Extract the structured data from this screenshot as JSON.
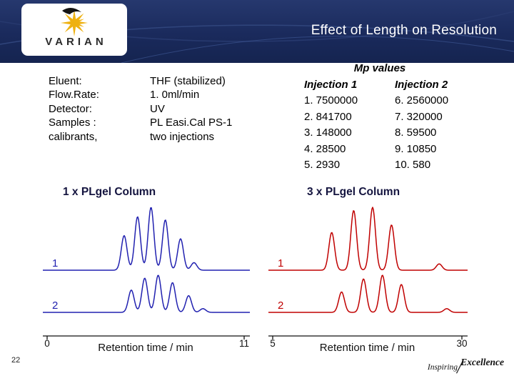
{
  "slide": {
    "title": "Effect of Length on Resolution",
    "page_number": "22"
  },
  "logo": {
    "text": "VARIAN"
  },
  "conditions": {
    "rows": [
      {
        "label": "Eluent:",
        "value": "THF (stabilized)"
      },
      {
        "label": "Flow.Rate:",
        "value": "1. 0ml/min"
      },
      {
        "label": "Detector:",
        "value": "UV"
      },
      {
        "label": "Samples :",
        "value": "PL Easi.Cal PS-1"
      },
      {
        "label": "calibrants,",
        "value": "two injections"
      }
    ]
  },
  "mp_values": {
    "title": "Mp values",
    "headers": [
      "Injection 1",
      "Injection 2"
    ],
    "rows": [
      [
        "1. 7500000",
        "6. 2560000"
      ],
      [
        "2. 841700",
        "7. 320000"
      ],
      [
        "3. 148000",
        "8. 59500"
      ],
      [
        "4. 28500",
        "9. 10850"
      ],
      [
        "5. 2930",
        "10. 580"
      ]
    ]
  },
  "brand": {
    "light": "Inspiring",
    "bold": "Excellence"
  },
  "colors": {
    "header_band": "#1a2a5c",
    "logo_star": "#eeb111",
    "trace_blue": "#2121b0",
    "trace_red": "#c00000"
  },
  "chart_data": [
    {
      "type": "line",
      "title": "1 x PLgel Column",
      "xlabel": "Retention time / min",
      "xlim": [
        0,
        11
      ],
      "x_ticks": [
        "0",
        "11"
      ],
      "grid": false,
      "color": "#2121b0",
      "axis_color": "#111111",
      "traces": [
        {
          "label": "1",
          "sigma": 0.16,
          "peaks": [
            {
              "t": 4.3,
              "h": 0.55
            },
            {
              "t": 5.05,
              "h": 0.85
            },
            {
              "t": 5.8,
              "h": 1.0
            },
            {
              "t": 6.6,
              "h": 0.8
            },
            {
              "t": 7.45,
              "h": 0.5
            },
            {
              "t": 8.2,
              "h": 0.12
            }
          ]
        },
        {
          "label": "2",
          "sigma": 0.16,
          "peaks": [
            {
              "t": 4.7,
              "h": 0.6
            },
            {
              "t": 5.45,
              "h": 0.92
            },
            {
              "t": 6.2,
              "h": 1.0
            },
            {
              "t": 7.0,
              "h": 0.8
            },
            {
              "t": 7.9,
              "h": 0.45
            },
            {
              "t": 8.7,
              "h": 0.1
            }
          ]
        }
      ]
    },
    {
      "type": "line",
      "title": "3 x PLgel Column",
      "xlabel": "Retention time / min",
      "xlim": [
        5,
        30
      ],
      "x_ticks": [
        "5",
        "30"
      ],
      "grid": false,
      "color": "#c00000",
      "axis_color": "#111111",
      "traces": [
        {
          "label": "1",
          "sigma": 0.38,
          "peaks": [
            {
              "t": 12.8,
              "h": 0.6
            },
            {
              "t": 15.7,
              "h": 0.95
            },
            {
              "t": 18.2,
              "h": 1.0
            },
            {
              "t": 20.7,
              "h": 0.72
            },
            {
              "t": 27.0,
              "h": 0.1
            }
          ]
        },
        {
          "label": "2",
          "sigma": 0.38,
          "peaks": [
            {
              "t": 14.1,
              "h": 0.55
            },
            {
              "t": 17.0,
              "h": 0.9
            },
            {
              "t": 19.5,
              "h": 1.0
            },
            {
              "t": 22.0,
              "h": 0.75
            },
            {
              "t": 28.0,
              "h": 0.1
            }
          ]
        }
      ]
    }
  ]
}
